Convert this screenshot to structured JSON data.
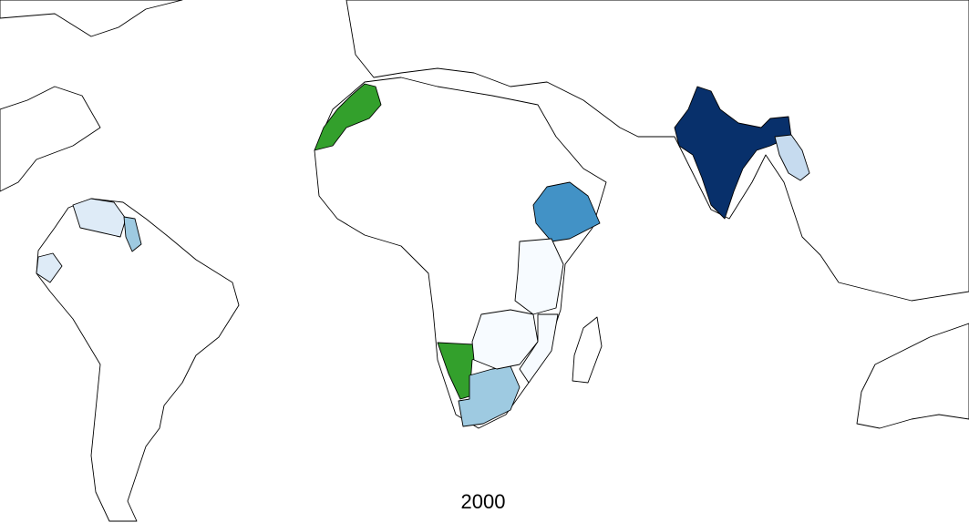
{
  "map": {
    "caption": "2000"
  }
}
